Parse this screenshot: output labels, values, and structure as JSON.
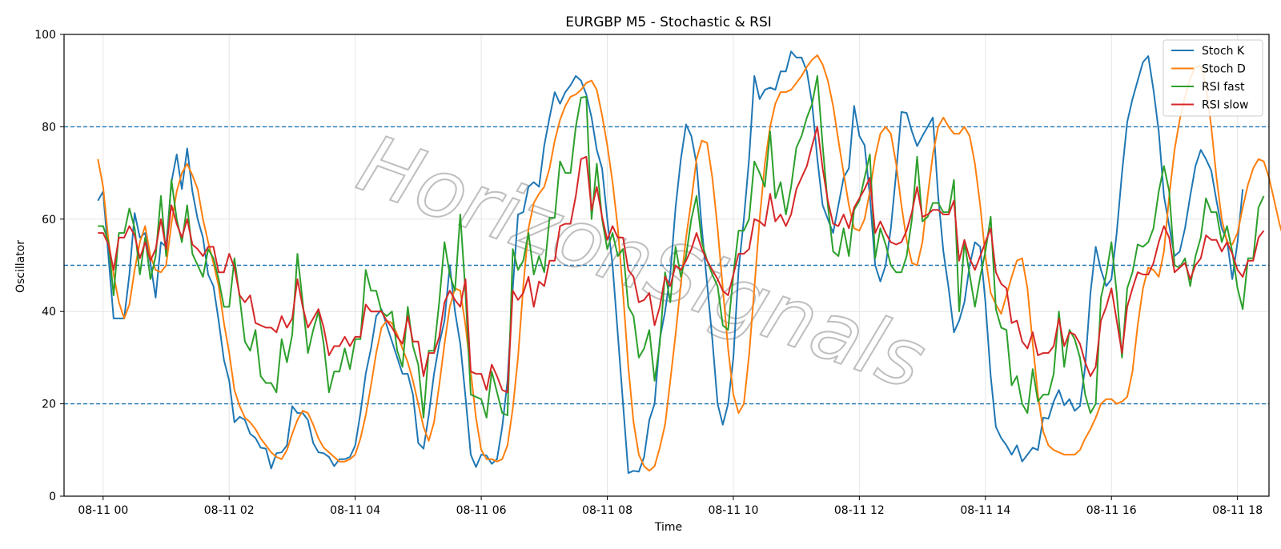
{
  "chart_data": {
    "type": "line",
    "title": "EURGBP M5 - Stochastic & RSI",
    "xlabel": "Time",
    "ylabel": "Oscillator",
    "ylim": [
      0,
      100
    ],
    "yticks": [
      0,
      20,
      40,
      60,
      80,
      100
    ],
    "xlim_hours": [
      -0.62,
      18.5
    ],
    "xticks": [
      {
        "hour": 0,
        "label": "08-11 00"
      },
      {
        "hour": 2,
        "label": "08-11 02"
      },
      {
        "hour": 4,
        "label": "08-11 04"
      },
      {
        "hour": 6,
        "label": "08-11 06"
      },
      {
        "hour": 8,
        "label": "08-11 08"
      },
      {
        "hour": 10,
        "label": "08-11 10"
      },
      {
        "hour": 12,
        "label": "08-11 12"
      },
      {
        "hour": 14,
        "label": "08-11 14"
      },
      {
        "hour": 16,
        "label": "08-11 16"
      },
      {
        "hour": 18,
        "label": "08-11 18"
      }
    ],
    "x_start_hour": -0.083,
    "x_step_hours": 0.0833333,
    "reference_lines": [
      20,
      50,
      80
    ],
    "grid": true,
    "legend_position": "top-right",
    "watermark": "HorizonSignals",
    "series": [
      {
        "name": "Stoch K",
        "color": "#1f77b4",
        "values": [
          64.0,
          66.0,
          52.0,
          38.5,
          38.5,
          38.5,
          48.0,
          61.3,
          56.0,
          57.0,
          50.5,
          43.0,
          55.0,
          54.0,
          68.0,
          74.0,
          66.5,
          75.3,
          66.0,
          60.0,
          56.0,
          48.0,
          45.5,
          38.0,
          29.5,
          25.0,
          16.0,
          17.2,
          16.5,
          13.5,
          12.6,
          10.5,
          10.3,
          6.0,
          9.3,
          9.5,
          11.0,
          19.5,
          18.0,
          18.0,
          16.5,
          11.5,
          9.5,
          9.3,
          8.5,
          6.5,
          8.0,
          8.0,
          8.5,
          11.0,
          18.0,
          26.5,
          32.0,
          39.0,
          40.5,
          37.0,
          33.5,
          30.0,
          26.5,
          26.5,
          22.0,
          11.5,
          10.3,
          17.5,
          26.5,
          33.0,
          38.0,
          50.0,
          40.0,
          33.0,
          21.5,
          9.0,
          6.3,
          9.0,
          8.8,
          7.0,
          8.0,
          15.0,
          25.0,
          45.0,
          61.0,
          61.5,
          67.0,
          68.0,
          67.0,
          76.0,
          82.0,
          87.5,
          85.0,
          87.5,
          89.0,
          91.0,
          90.0,
          87.0,
          82.0,
          75.0,
          71.0,
          60.0,
          50.0,
          35.0,
          20.0,
          5.0,
          5.5,
          5.3,
          8.5,
          16.5,
          20.0,
          34.0,
          40.0,
          48.0,
          62.5,
          73.0,
          80.5,
          78.0,
          72.0,
          58.0,
          46.0,
          34.0,
          20.0,
          15.5,
          20.0,
          30.0,
          49.0,
          60.0,
          73.0,
          91.0,
          86.0,
          88.0,
          88.5,
          88.0,
          92.0,
          92.0,
          96.3,
          95.0,
          95.0,
          92.0,
          85.0,
          73.0,
          63.0,
          60.0,
          57.0,
          63.0,
          69.0,
          71.0,
          84.5,
          78.0,
          76.0,
          65.0,
          50.0,
          46.5,
          50.0,
          58.0,
          70.0,
          83.2,
          83.0,
          79.0,
          75.8,
          78.0,
          80.0,
          82.0,
          65.0,
          53.0,
          45.0,
          35.5,
          38.0,
          42.0,
          50.0,
          55.0,
          54.0,
          42.0,
          26.0,
          15.0,
          12.6,
          11.0,
          9.0,
          11.0,
          7.5,
          9.0,
          10.5,
          10.0,
          17.0,
          16.8,
          20.5,
          23.0,
          19.7,
          21.0,
          18.5,
          19.5,
          28.0,
          44.0,
          54.0,
          49.0,
          45.5,
          47.0,
          57.0,
          70.0,
          81.0,
          86.0,
          90.0,
          94.0,
          95.3,
          88.0,
          79.0,
          65.0,
          58.5,
          52.0,
          53.0,
          58.0,
          65.0,
          71.5,
          75.0,
          73.0,
          70.5,
          64.0,
          58.0,
          55.5,
          47.0,
          55.0,
          66.5
        ]
      },
      {
        "name": "Stoch D",
        "color": "#ff7f0e",
        "values": [
          73.0,
          67.0,
          55.5,
          48.0,
          42.0,
          38.5,
          41.5,
          49.0,
          55.0,
          58.5,
          52.0,
          49.0,
          48.5,
          50.0,
          59.0,
          66.0,
          70.0,
          72.0,
          69.5,
          66.5,
          60.0,
          55.0,
          50.5,
          45.5,
          37.5,
          31.0,
          23.0,
          19.5,
          17.0,
          16.0,
          14.5,
          12.5,
          11.0,
          9.5,
          8.5,
          8.0,
          10.0,
          13.5,
          16.5,
          18.5,
          18.0,
          15.5,
          12.5,
          10.5,
          9.5,
          8.5,
          7.5,
          7.5,
          8.0,
          9.0,
          12.5,
          17.5,
          24.0,
          31.0,
          36.5,
          38.0,
          37.5,
          35.0,
          32.0,
          29.0,
          25.0,
          20.0,
          15.0,
          12.0,
          16.0,
          24.0,
          33.0,
          41.0,
          45.0,
          44.5,
          37.0,
          27.0,
          17.0,
          10.0,
          8.0,
          8.0,
          7.5,
          8.0,
          11.0,
          19.0,
          30.0,
          45.5,
          58.0,
          63.5,
          65.5,
          67.0,
          71.0,
          77.0,
          81.5,
          84.5,
          86.5,
          87.0,
          88.0,
          89.5,
          90.0,
          88.0,
          82.5,
          76.0,
          68.0,
          58.0,
          44.0,
          28.0,
          16.0,
          9.0,
          6.5,
          5.5,
          6.5,
          10.5,
          15.5,
          25.0,
          35.0,
          46.0,
          56.0,
          64.0,
          73.0,
          77.0,
          76.5,
          69.0,
          58.0,
          45.0,
          32.0,
          22.0,
          18.0,
          20.0,
          30.5,
          45.0,
          60.0,
          72.0,
          80.0,
          85.0,
          87.5,
          87.5,
          88.0,
          89.5,
          91.0,
          93.0,
          94.5,
          95.5,
          93.5,
          90.0,
          84.5,
          77.0,
          70.0,
          63.0,
          58.0,
          57.5,
          60.0,
          66.0,
          73.5,
          78.5,
          80.0,
          78.5,
          72.0,
          63.0,
          55.5,
          50.5,
          50.0,
          55.0,
          65.0,
          74.0,
          80.0,
          82.0,
          80.0,
          78.5,
          78.5,
          80.0,
          78.0,
          72.0,
          63.0,
          52.0,
          44.0,
          41.5,
          39.5,
          43.5,
          47.5,
          51.0,
          51.5,
          45.0,
          33.0,
          22.0,
          14.0,
          11.0,
          10.0,
          9.5,
          9.0,
          9.0,
          9.0,
          10.0,
          12.5,
          14.5,
          17.0,
          20.0,
          21.0,
          21.0,
          20.0,
          20.5,
          21.5,
          27.0,
          37.0,
          45.0,
          49.5,
          49.0,
          47.5,
          53.0,
          65.0,
          75.0,
          81.5,
          86.5,
          90.5,
          93.0,
          93.0,
          89.0,
          80.0,
          69.0,
          60.0,
          55.0,
          54.5,
          57.0,
          62.5,
          67.5,
          71.0,
          73.0,
          72.5,
          69.0,
          64.0,
          59.0,
          55.0,
          52.5,
          56.0
        ]
      },
      {
        "name": "RSI fast",
        "color": "#2ca02c",
        "values": [
          58.5,
          58.5,
          55.0,
          43.5,
          57.0,
          57.0,
          62.3,
          58.0,
          48.0,
          56.0,
          47.0,
          52.0,
          65.0,
          52.0,
          68.5,
          60.0,
          55.0,
          63.0,
          52.5,
          50.0,
          47.5,
          53.5,
          51.5,
          47.0,
          41.0,
          41.0,
          51.5,
          43.0,
          33.5,
          31.5,
          36.0,
          26.0,
          24.5,
          24.5,
          22.5,
          34.0,
          29.0,
          35.0,
          52.5,
          42.0,
          31.0,
          36.0,
          40.0,
          33.0,
          22.5,
          27.0,
          27.0,
          32.0,
          27.5,
          34.0,
          34.0,
          49.0,
          44.5,
          44.5,
          40.0,
          39.0,
          40.0,
          31.5,
          28.0,
          41.0,
          32.5,
          28.5,
          17.0,
          31.5,
          31.5,
          42.0,
          55.0,
          48.0,
          44.5,
          61.0,
          44.0,
          22.0,
          21.5,
          21.0,
          17.0,
          27.0,
          22.5,
          18.0,
          17.5,
          53.5,
          49.0,
          51.0,
          57.0,
          48.0,
          52.0,
          48.5,
          60.3,
          60.3,
          72.5,
          70.0,
          70.0,
          80.0,
          86.3,
          86.5,
          60.0,
          72.0,
          60.0,
          53.5,
          57.0,
          52.0,
          53.5,
          41.0,
          39.0,
          30.0,
          32.0,
          36.0,
          25.0,
          33.0,
          48.5,
          42.0,
          54.0,
          47.5,
          52.0,
          60.0,
          65.0,
          55.0,
          51.0,
          48.0,
          45.5,
          37.0,
          36.0,
          48.0,
          57.5,
          57.5,
          60.0,
          72.5,
          70.0,
          67.0,
          79.0,
          64.5,
          68.0,
          61.0,
          67.0,
          75.5,
          78.0,
          82.0,
          85.0,
          91.0,
          76.0,
          63.0,
          53.0,
          52.0,
          58.0,
          52.0,
          62.0,
          64.0,
          69.0,
          74.0,
          51.5,
          58.0,
          54.5,
          50.0,
          48.5,
          48.5,
          52.0,
          60.0,
          73.5,
          59.5,
          60.5,
          63.5,
          63.5,
          61.5,
          61.5,
          68.5,
          40.0,
          55.0,
          48.0,
          41.0,
          47.5,
          53.0,
          60.5,
          40.5,
          36.5,
          36.0,
          24.0,
          26.0,
          20.0,
          18.0,
          27.5,
          20.5,
          22.0,
          22.0,
          26.5,
          40.0,
          28.0,
          36.0,
          34.0,
          30.0,
          22.0,
          18.0,
          20.0,
          43.0,
          48.0,
          55.0,
          44.0,
          30.0,
          45.0,
          48.5,
          54.5,
          54.0,
          55.0,
          58.0,
          66.0,
          71.5,
          66.0,
          50.0,
          49.5,
          51.5,
          45.5,
          52.0,
          56.0,
          64.5,
          61.5,
          61.5,
          55.0,
          58.5,
          53.0,
          45.0,
          40.5,
          51.5,
          51.5,
          62.5,
          65.0
        ]
      },
      {
        "name": "RSI slow",
        "color": "#d62728",
        "values": [
          57.0,
          57.0,
          54.5,
          49.0,
          56.0,
          56.0,
          58.5,
          56.5,
          51.5,
          55.0,
          51.0,
          53.5,
          60.0,
          53.5,
          63.0,
          59.0,
          56.0,
          60.0,
          54.5,
          53.5,
          52.0,
          54.0,
          54.0,
          48.5,
          48.5,
          52.5,
          49.5,
          43.5,
          42.0,
          43.5,
          37.5,
          37.0,
          36.5,
          36.5,
          35.5,
          39.0,
          36.5,
          38.5,
          47.0,
          41.0,
          36.5,
          38.5,
          40.5,
          36.5,
          30.5,
          32.5,
          32.5,
          34.5,
          32.5,
          34.5,
          34.5,
          41.5,
          40.0,
          40.0,
          40.0,
          38.0,
          36.5,
          34.5,
          33.0,
          39.0,
          33.5,
          33.5,
          26.0,
          31.0,
          31.0,
          34.5,
          42.0,
          44.5,
          42.5,
          41.0,
          47.0,
          27.0,
          26.5,
          26.5,
          23.0,
          28.5,
          26.0,
          23.0,
          22.5,
          44.5,
          42.5,
          44.0,
          47.5,
          41.0,
          46.5,
          45.5,
          51.0,
          51.0,
          58.5,
          59.0,
          59.0,
          65.0,
          73.0,
          73.5,
          62.0,
          67.0,
          60.5,
          55.5,
          58.5,
          56.0,
          56.0,
          49.0,
          47.5,
          42.0,
          42.5,
          44.0,
          37.0,
          41.0,
          47.5,
          45.5,
          50.0,
          49.0,
          51.0,
          53.5,
          57.0,
          53.5,
          51.0,
          49.0,
          47.0,
          44.5,
          43.5,
          48.0,
          52.5,
          52.5,
          53.5,
          60.0,
          59.5,
          58.5,
          65.5,
          59.5,
          61.0,
          58.5,
          61.0,
          66.5,
          69.0,
          71.5,
          76.0,
          80.0,
          71.0,
          64.0,
          59.0,
          58.5,
          61.0,
          58.0,
          62.5,
          64.5,
          66.5,
          69.0,
          57.0,
          59.5,
          57.0,
          55.0,
          54.5,
          55.0,
          57.5,
          61.5,
          67.0,
          60.5,
          61.0,
          62.0,
          62.0,
          61.0,
          61.0,
          64.0,
          51.0,
          55.5,
          51.5,
          49.0,
          52.0,
          55.0,
          58.0,
          48.5,
          46.0,
          45.0,
          37.5,
          38.0,
          33.5,
          32.0,
          35.5,
          30.5,
          31.0,
          31.0,
          32.5,
          38.5,
          32.5,
          35.5,
          35.0,
          33.0,
          29.0,
          26.0,
          28.0,
          38.0,
          41.0,
          45.0,
          38.0,
          31.0,
          41.0,
          45.0,
          48.5,
          48.0,
          48.0,
          50.5,
          55.0,
          58.5,
          56.0,
          48.5,
          49.5,
          50.5,
          47.0,
          50.0,
          51.5,
          56.5,
          55.5,
          55.5,
          53.0,
          55.0,
          52.5,
          49.0,
          47.5,
          51.0,
          51.0,
          56.0,
          57.5
        ]
      }
    ]
  }
}
